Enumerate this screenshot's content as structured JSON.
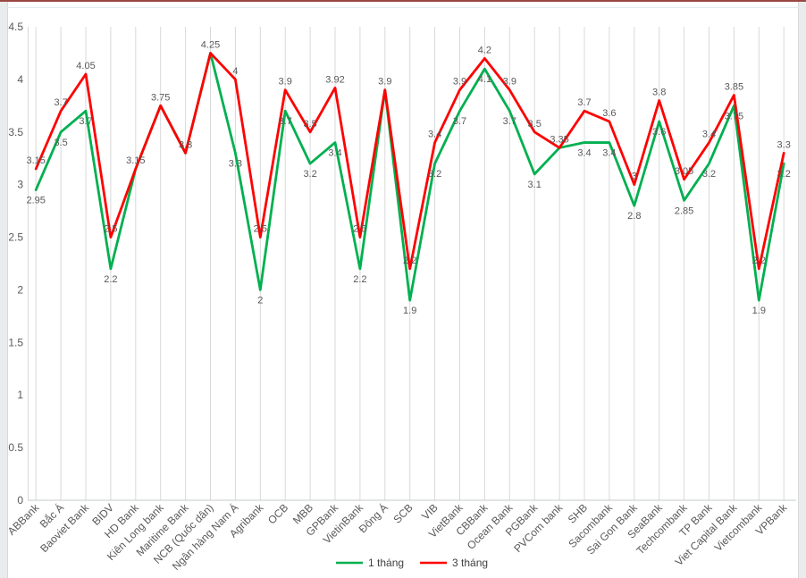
{
  "frame": {
    "top_line_color": "#9b4741",
    "edge_strip_color": "#e9ebec",
    "background_color": "#ffffff"
  },
  "chart_data": {
    "type": "line",
    "title": "",
    "xlabel": "",
    "ylabel": "",
    "ylim": [
      0,
      4.5
    ],
    "yticks": [
      0,
      0.5,
      1,
      1.5,
      2,
      2.5,
      3,
      3.5,
      4,
      4.5
    ],
    "grid": "vertical-category-gridlines",
    "legend_position": "bottom-center",
    "data_labels_shown": true,
    "categories": [
      "ABBank",
      "Bắc Á",
      "Baoviet Bank",
      "BIDV",
      "HD Bank",
      "Kiên Long bank",
      "Maritime Bank",
      "NCB (Quốc dân)",
      "Ngân hàng Nam Á",
      "Agribank",
      "OCB",
      "MBB",
      "GPBank",
      "VietinBank",
      "Đông Á",
      "SCB",
      "VIB",
      "VietBank",
      "CBBank",
      "Ocean Bank",
      "PGBank",
      "PVCom bank",
      "SHB",
      "Sacombank",
      "Sai Gon Bank",
      "SeaBank",
      "Techcombank",
      "TP Bank",
      "Viet Capital Bank",
      "Vietcombank",
      "VPBank"
    ],
    "series": [
      {
        "name": "1 tháng",
        "color": "#00b050",
        "values": [
          2.95,
          3.5,
          3.7,
          2.2,
          3.15,
          3.75,
          3.3,
          4.25,
          3.3,
          2,
          3.7,
          3.2,
          3.4,
          2.2,
          3.9,
          1.9,
          3.2,
          3.7,
          4.1,
          3.7,
          3.1,
          3.35,
          3.4,
          3.4,
          2.8,
          3.6,
          2.85,
          3.2,
          3.75,
          1.9,
          3.2
        ]
      },
      {
        "name": "3 tháng",
        "color": "#ff0000",
        "values": [
          3.15,
          3.7,
          4.05,
          2.5,
          3.15,
          3.75,
          3.3,
          4.25,
          4,
          2.5,
          3.9,
          3.5,
          3.92,
          2.5,
          3.9,
          2.2,
          3.4,
          3.9,
          4.2,
          3.9,
          3.5,
          3.35,
          3.7,
          3.6,
          3,
          3.8,
          3.05,
          3.4,
          3.85,
          2.2,
          3.3
        ]
      }
    ]
  },
  "style": {
    "gridline_color": "#d9d9d9",
    "axis_line_color": "#c6c9cb",
    "tick_label_color": "#595959",
    "data_label_color": "#595959",
    "legend_text_color": "#404040"
  }
}
